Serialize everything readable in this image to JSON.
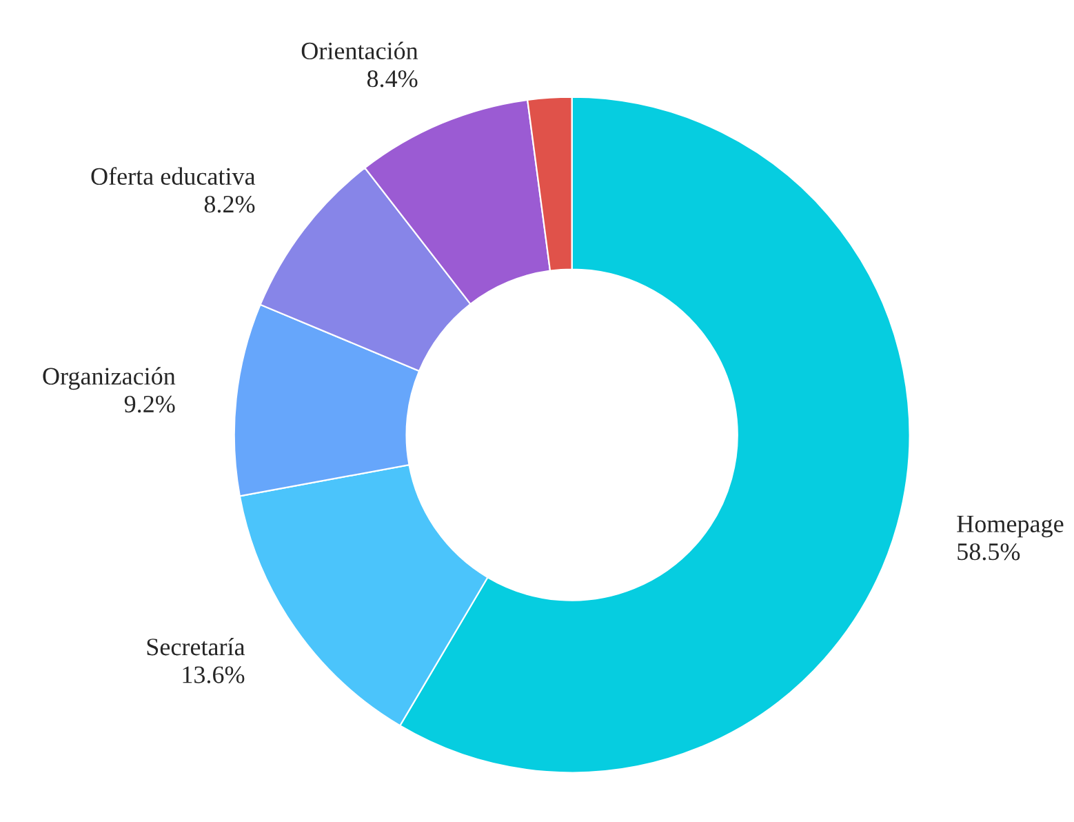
{
  "chart_data": {
    "type": "donut",
    "categories": [
      "Homepage",
      "Secretaría",
      "Organización",
      "Oferta educativa",
      "Orientación",
      null
    ],
    "values": [
      58.5,
      13.6,
      9.2,
      8.2,
      8.4,
      2.1
    ],
    "colors": [
      "#06cde0",
      "#4bc4fb",
      "#66a6fb",
      "#8785e8",
      "#9b5bd3",
      "#e0524a"
    ],
    "value_labels": [
      "58.5%",
      "13.6%",
      "9.2%",
      "8.2%",
      "8.4%",
      null
    ],
    "legend": false
  }
}
